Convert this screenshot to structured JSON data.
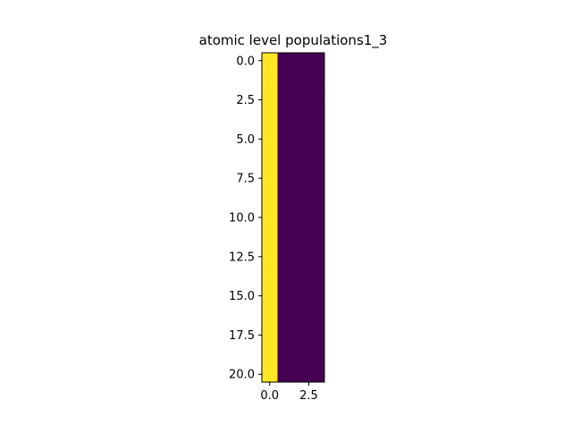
{
  "chart_data": {
    "type": "heatmap",
    "title": "atomic level populations1_3",
    "xlabel": "",
    "ylabel": "",
    "rows": 21,
    "cols": 4,
    "extent": {
      "x": [
        -0.5,
        3.5
      ],
      "y": [
        20.5,
        -0.5
      ]
    },
    "xticks": [
      0.0,
      2.5
    ],
    "xtick_labels": [
      "0.0",
      "2.5"
    ],
    "yticks": [
      0.0,
      2.5,
      5.0,
      7.5,
      10.0,
      12.5,
      15.0,
      17.5,
      20.0
    ],
    "ytick_labels": [
      "0.0",
      "2.5",
      "5.0",
      "7.5",
      "10.0",
      "12.5",
      "15.0",
      "17.5",
      "20.0"
    ],
    "values": [
      [
        1,
        0,
        0,
        0
      ],
      [
        1,
        0,
        0,
        0
      ],
      [
        1,
        0,
        0,
        0
      ],
      [
        1,
        0,
        0,
        0
      ],
      [
        1,
        0,
        0,
        0
      ],
      [
        1,
        0,
        0,
        0
      ],
      [
        1,
        0,
        0,
        0
      ],
      [
        1,
        0,
        0,
        0
      ],
      [
        1,
        0,
        0,
        0
      ],
      [
        1,
        0,
        0,
        0
      ],
      [
        1,
        0,
        0,
        0
      ],
      [
        1,
        0,
        0,
        0
      ],
      [
        1,
        0,
        0,
        0
      ],
      [
        1,
        0,
        0,
        0
      ],
      [
        1,
        0,
        0,
        0
      ],
      [
        1,
        0,
        0,
        0
      ],
      [
        1,
        0,
        0,
        0
      ],
      [
        1,
        0,
        0,
        0
      ],
      [
        1,
        0,
        0,
        0
      ],
      [
        1,
        0,
        0,
        0
      ],
      [
        1,
        0,
        0,
        0
      ]
    ],
    "colormap": {
      "name": "viridis",
      "low": "#440154",
      "high": "#fde725"
    },
    "grid": false,
    "legend": "none"
  }
}
